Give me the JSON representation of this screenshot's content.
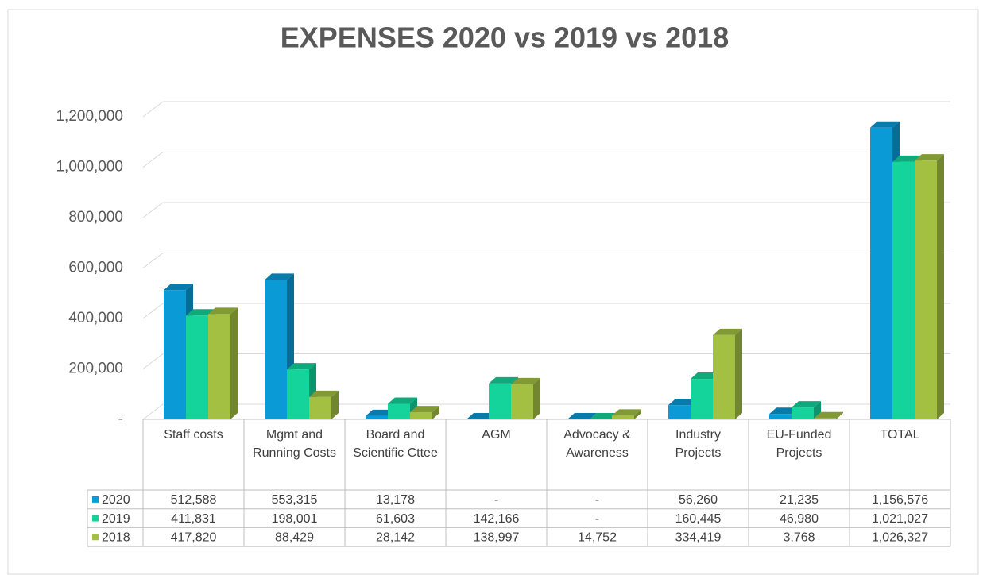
{
  "chart_data": {
    "type": "bar3d",
    "title": "EXPENSES 2020 vs 2019 vs 2018",
    "categories": [
      "Staff costs",
      "Mgmt and Running Costs",
      "Board and Scientific Cttee",
      "AGM",
      "Advocacy & Awareness",
      "Industry Projects",
      "EU-Funded Projects",
      "TOTAL"
    ],
    "series": [
      {
        "name": "2020",
        "color": "#0a9ad6",
        "values": [
          512588,
          553315,
          13178,
          0,
          0,
          56260,
          21235,
          1156576
        ],
        "value_labels": [
          "512,588",
          "553,315",
          "13,178",
          "-",
          "-",
          "56,260",
          "21,235",
          "1,156,576"
        ]
      },
      {
        "name": "2019",
        "color": "#14d39b",
        "values": [
          411831,
          198001,
          61603,
          142166,
          0,
          160445,
          46980,
          1021027
        ],
        "value_labels": [
          "411,831",
          "198,001",
          "61,603",
          "142,166",
          "-",
          "160,445",
          "46,980",
          "1,021,027"
        ]
      },
      {
        "name": "2018",
        "color": "#a3c043",
        "values": [
          417820,
          88429,
          28142,
          138997,
          14752,
          334419,
          3768,
          1026327
        ],
        "value_labels": [
          "417,820",
          "88,429",
          "28,142",
          "138,997",
          "14,752",
          "334,419",
          "3,768",
          "1,026,327"
        ]
      }
    ],
    "ylim": [
      0,
      1200000
    ],
    "yticks": [
      {
        "value": 0,
        "label": "-"
      },
      {
        "value": 200000,
        "label": "200,000"
      },
      {
        "value": 400000,
        "label": "400,000"
      },
      {
        "value": 600000,
        "label": "600,000"
      },
      {
        "value": 800000,
        "label": "800,000"
      },
      {
        "value": 1000000,
        "label": "1,000,000"
      },
      {
        "value": 1200000,
        "label": "1,200,000"
      }
    ],
    "grid": true,
    "data_table": true
  }
}
